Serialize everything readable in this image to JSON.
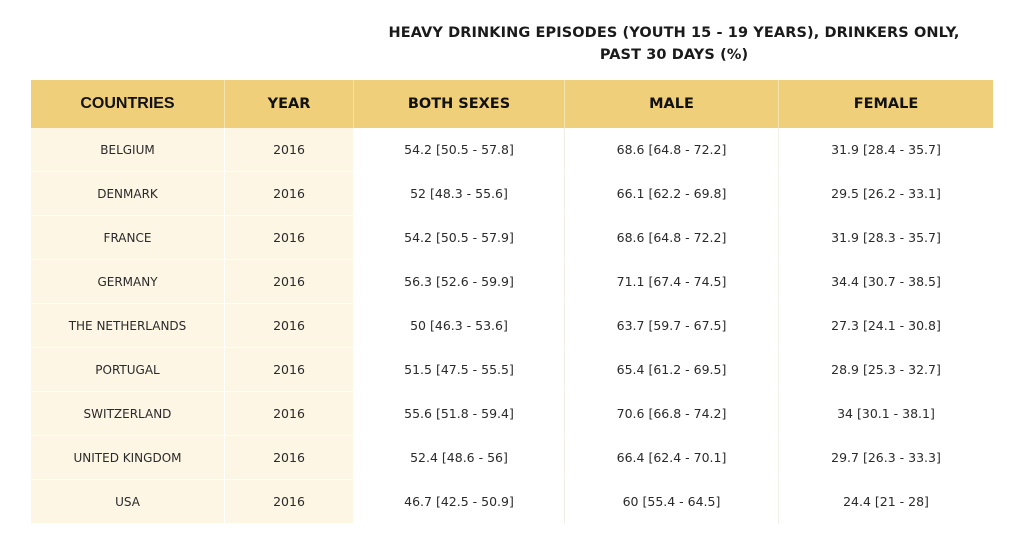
{
  "title": {
    "line1": "HEAVY DRINKING EPISODES (YOUTH 15 - 19 YEARS), DRINKERS ONLY,",
    "line2": "PAST 30 DAYS (%)"
  },
  "columns": [
    "COUNTRIES",
    "YEAR",
    "BOTH SEXES",
    "MALE",
    "FEMALE"
  ],
  "rows": [
    [
      "BELGIUM",
      "2016",
      "54.2 [50.5 - 57.8]",
      "68.6 [64.8 - 72.2]",
      "31.9 [28.4 - 35.7]"
    ],
    [
      "DENMARK",
      "2016",
      "52 [48.3 - 55.6]",
      "66.1 [62.2 - 69.8]",
      "29.5 [26.2 - 33.1]"
    ],
    [
      "FRANCE",
      "2016",
      "54.2 [50.5 - 57.9]",
      "68.6 [64.8 - 72.2]",
      "31.9 [28.3 - 35.7]"
    ],
    [
      "GERMANY",
      "2016",
      "56.3 [52.6 - 59.9]",
      "71.1 [67.4 - 74.5]",
      "34.4 [30.7 - 38.5]"
    ],
    [
      "THE NETHERLANDS",
      "2016",
      "50 [46.3 - 53.6]",
      "63.7 [59.7 - 67.5]",
      "27.3 [24.1 - 30.8]"
    ],
    [
      "PORTUGAL",
      "2016",
      "51.5 [47.5 - 55.5]",
      "65.4 [61.2 - 69.5]",
      "28.9 [25.3 - 32.7]"
    ],
    [
      "SWITZERLAND",
      "2016",
      "55.6 [51.8 - 59.4]",
      "70.6 [66.8 - 74.2]",
      "34 [30.1 - 38.1]"
    ],
    [
      "UNITED KINGDOM",
      "2016",
      "52.4 [48.6 - 56]",
      "66.4 [62.4 - 70.1]",
      "29.7 [26.3 - 33.3]"
    ],
    [
      "USA",
      "2016",
      "46.7 [42.5 - 50.9]",
      "60 [55.4 - 64.5]",
      "24.4 [21 - 28]"
    ]
  ],
  "colors": {
    "header_bg": "#f0cf7a",
    "first_columns_bg": "#fdf6e4",
    "text": "#222222"
  }
}
